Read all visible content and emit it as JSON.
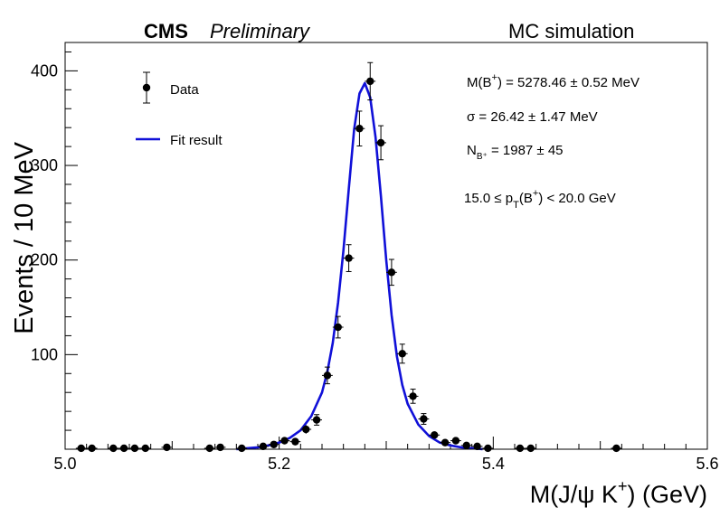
{
  "header": {
    "cms_label": "CMS",
    "preliminary_label": "Preliminary",
    "right_label": "MC simulation"
  },
  "legend": {
    "data_label": "Data",
    "fit_label": "Fit result"
  },
  "annotations": {
    "mass": {
      "prefix": "M(B",
      "sup": "+",
      "suffix": ") = 5278.46  ± 0.52 MeV"
    },
    "sigma": "σ = 26.42  ± 1.47 MeV",
    "yield": {
      "prefix": "N",
      "sub": "B⁺",
      "suffix": " = 1987  ± 45"
    },
    "pt_range": {
      "prefix": "15.0 ≤ p",
      "sub": "T",
      "middle": "(B",
      "sup": "+",
      "suffix": ") < 20.0 GeV"
    }
  },
  "axes": {
    "ylabel": "Events / 10 MeV",
    "xlabel": {
      "prefix": "M(J/ψ K",
      "sup": "+",
      "suffix": ") (GeV)"
    }
  },
  "colors": {
    "fit_line": "#1010d8",
    "markers": "#000000"
  },
  "chart_data": {
    "type": "scatter",
    "xlim": [
      5.0,
      5.6
    ],
    "ylim": [
      0,
      430
    ],
    "x_major_ticks": [
      5.0,
      5.2,
      5.4,
      5.6
    ],
    "x_tick_labels": [
      "5.0",
      "5.2",
      "5.4",
      "5.6"
    ],
    "y_major_ticks": [
      100,
      200,
      300,
      400
    ],
    "y_tick_labels": [
      "100",
      "200",
      "300",
      "400"
    ],
    "grid": false,
    "legend_position": "top-left",
    "series": [
      {
        "name": "Data",
        "kind": "points_with_errors",
        "points": [
          {
            "x": 5.015,
            "y": 1
          },
          {
            "x": 5.025,
            "y": 1
          },
          {
            "x": 5.045,
            "y": 1
          },
          {
            "x": 5.055,
            "y": 1
          },
          {
            "x": 5.065,
            "y": 1
          },
          {
            "x": 5.075,
            "y": 1
          },
          {
            "x": 5.095,
            "y": 2
          },
          {
            "x": 5.135,
            "y": 1
          },
          {
            "x": 5.145,
            "y": 2
          },
          {
            "x": 5.165,
            "y": 1
          },
          {
            "x": 5.185,
            "y": 3
          },
          {
            "x": 5.195,
            "y": 5
          },
          {
            "x": 5.205,
            "y": 9
          },
          {
            "x": 5.215,
            "y": 8
          },
          {
            "x": 5.225,
            "y": 21
          },
          {
            "x": 5.235,
            "y": 31
          },
          {
            "x": 5.245,
            "y": 78
          },
          {
            "x": 5.255,
            "y": 129
          },
          {
            "x": 5.265,
            "y": 202
          },
          {
            "x": 5.275,
            "y": 339
          },
          {
            "x": 5.285,
            "y": 389
          },
          {
            "x": 5.295,
            "y": 324
          },
          {
            "x": 5.305,
            "y": 187
          },
          {
            "x": 5.315,
            "y": 101
          },
          {
            "x": 5.325,
            "y": 56
          },
          {
            "x": 5.335,
            "y": 32
          },
          {
            "x": 5.345,
            "y": 15
          },
          {
            "x": 5.355,
            "y": 7
          },
          {
            "x": 5.365,
            "y": 9
          },
          {
            "x": 5.375,
            "y": 4
          },
          {
            "x": 5.385,
            "y": 3
          },
          {
            "x": 5.395,
            "y": 1
          },
          {
            "x": 5.425,
            "y": 1
          },
          {
            "x": 5.435,
            "y": 1
          },
          {
            "x": 5.515,
            "y": 1
          }
        ]
      },
      {
        "name": "Fit result",
        "kind": "curve",
        "x": [
          5.16,
          5.17,
          5.18,
          5.19,
          5.2,
          5.21,
          5.22,
          5.23,
          5.24,
          5.245,
          5.25,
          5.255,
          5.26,
          5.265,
          5.27,
          5.275,
          5.28,
          5.285,
          5.29,
          5.295,
          5.3,
          5.305,
          5.31,
          5.315,
          5.32,
          5.33,
          5.34,
          5.35,
          5.36,
          5.37,
          5.38,
          5.39
        ],
        "y": [
          0,
          1,
          2,
          4,
          7,
          12,
          20,
          35,
          60,
          82,
          112,
          155,
          210,
          275,
          338,
          376,
          387,
          372,
          330,
          268,
          200,
          142,
          98,
          68,
          48,
          26,
          14,
          7,
          4,
          2,
          1,
          0
        ]
      }
    ]
  }
}
